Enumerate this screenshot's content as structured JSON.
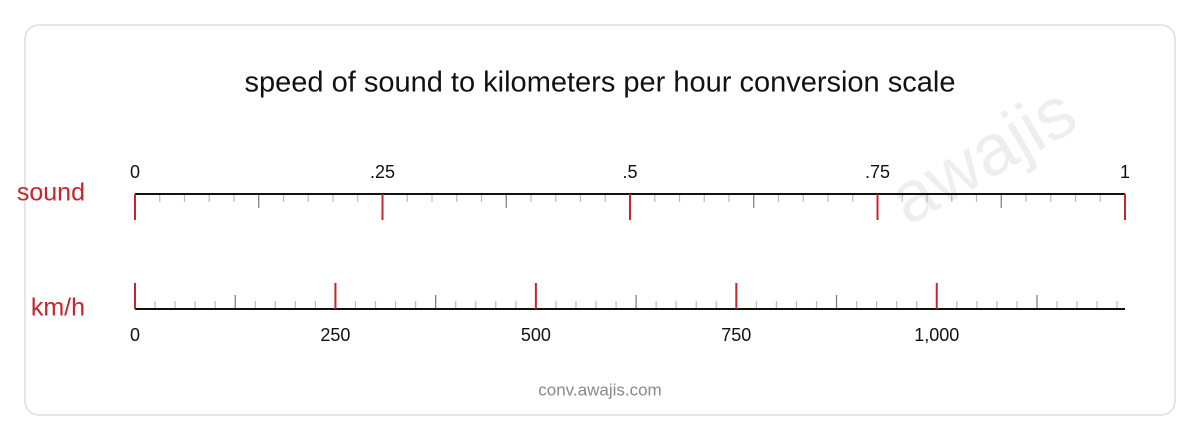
{
  "chart_data": {
    "type": "conversion-scale",
    "title": "speed of sound to kilometers per hour conversion scale",
    "watermark": "awajis",
    "footer": "conv.awajis.com",
    "scales": [
      {
        "name": "sound",
        "color": "#c8242b",
        "position": "top",
        "xlim": [
          0,
          1
        ],
        "xticks": [
          0,
          {
            "value": 0.25,
            "label": ".25"
          },
          {
            "value": 0.5,
            "label": ".5"
          },
          {
            "value": 0.75,
            "label": ".75"
          },
          1
        ]
      },
      {
        "name": "km/h",
        "color": "#c8242b",
        "position": "bottom",
        "xlim": [
          0,
          1234.8
        ],
        "xticks": [
          0,
          250,
          500,
          750,
          {
            "value": 1000,
            "label": "1,000"
          }
        ]
      }
    ]
  }
}
